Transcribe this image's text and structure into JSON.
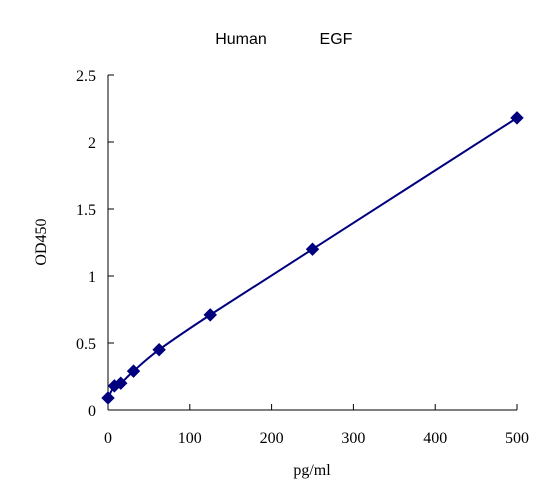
{
  "chart_data": {
    "type": "scatter",
    "title": "Human EGF",
    "title_parts": [
      "Human",
      "EGF"
    ],
    "xlabel": "pg/ml",
    "ylabel": "OD450",
    "xlim": [
      0,
      500
    ],
    "ylim": [
      0,
      2.5
    ],
    "x_ticks": [
      0,
      100,
      200,
      300,
      400,
      500
    ],
    "y_ticks": [
      0,
      0.5,
      1,
      1.5,
      2,
      2.5
    ],
    "x_tick_labels": [
      "0",
      "100",
      "200",
      "300",
      "400",
      "500"
    ],
    "y_tick_labels": [
      "0",
      "0.5",
      "1",
      "1.5",
      "2",
      "2.5"
    ],
    "grid": false,
    "legend": "none",
    "marker": "diamond",
    "line": "smooth",
    "color": "#00007f",
    "series": [
      {
        "x": [
          0,
          7.8,
          15.6,
          31.2,
          62.5,
          125,
          250,
          500
        ],
        "y": [
          0.09,
          0.18,
          0.2,
          0.29,
          0.45,
          0.71,
          1.2,
          2.18
        ]
      }
    ]
  }
}
